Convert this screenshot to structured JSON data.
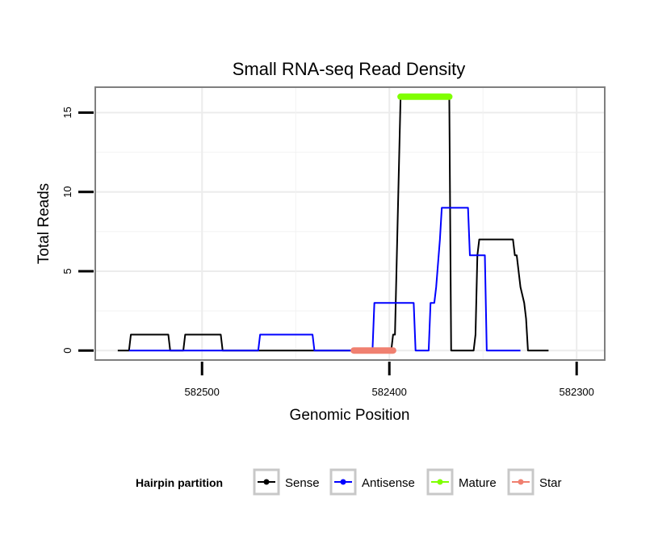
{
  "chart_data": {
    "type": "line",
    "title": "Small RNA-seq Read Density",
    "xlabel": "Genomic Position",
    "ylabel": "Total Reads",
    "xlim": [
      582557,
      582285
    ],
    "ylim": [
      -0.6,
      16.6
    ],
    "x_reversed": true,
    "x_ticks": [
      582500,
      582400,
      582300
    ],
    "x_tick_labels": [
      "582500",
      "582400",
      "582300"
    ],
    "y_ticks": [
      0,
      5,
      10,
      15
    ],
    "y_tick_labels": [
      "0",
      "5",
      "10",
      "15"
    ],
    "grid": true,
    "legend_position": "bottom",
    "legend_title": "Hairpin partition",
    "series": [
      {
        "name": "Sense",
        "color": "#000000",
        "kind": "line",
        "points": [
          [
            582545,
            0
          ],
          [
            582539,
            0
          ],
          [
            582538,
            1
          ],
          [
            582518,
            1
          ],
          [
            582517,
            0
          ],
          [
            582510,
            0
          ],
          [
            582509,
            1
          ],
          [
            582490,
            1
          ],
          [
            582489,
            0
          ],
          [
            582400,
            0
          ],
          [
            582399,
            0
          ],
          [
            582398,
            1
          ],
          [
            582397,
            1
          ],
          [
            582394,
            16
          ],
          [
            582368,
            16
          ],
          [
            582367,
            0
          ],
          [
            582355,
            0
          ],
          [
            582354,
            1
          ],
          [
            582353,
            6
          ],
          [
            582352,
            7
          ],
          [
            582334,
            7
          ],
          [
            582333,
            6
          ],
          [
            582332,
            6
          ],
          [
            582330,
            4
          ],
          [
            582328,
            3
          ],
          [
            582327,
            2
          ],
          [
            582326,
            0
          ],
          [
            582315,
            0
          ]
        ]
      },
      {
        "name": "Antisense",
        "color": "#0000ff",
        "kind": "line",
        "points": [
          [
            582539,
            0
          ],
          [
            582509,
            0
          ],
          [
            582490,
            0
          ],
          [
            582470,
            0
          ],
          [
            582469,
            1
          ],
          [
            582441,
            1
          ],
          [
            582440,
            0
          ],
          [
            582409,
            0
          ],
          [
            582408,
            3
          ],
          [
            582387,
            3
          ],
          [
            582386,
            0
          ],
          [
            582379,
            0
          ],
          [
            582378,
            3
          ],
          [
            582376,
            3
          ],
          [
            582375,
            4
          ],
          [
            582373,
            7
          ],
          [
            582372,
            9
          ],
          [
            582358,
            9
          ],
          [
            582357,
            6
          ],
          [
            582349,
            6
          ],
          [
            582348,
            0
          ],
          [
            582330,
            0
          ]
        ]
      },
      {
        "name": "Mature",
        "color": "#7fff00",
        "kind": "segment",
        "x_start": 582394,
        "x_end": 582368,
        "y": 16
      },
      {
        "name": "Star",
        "color": "#f08070",
        "kind": "segment",
        "x_start": 582419,
        "x_end": 582398,
        "y": 0
      }
    ]
  },
  "legend": {
    "title": "Hairpin partition",
    "items": [
      {
        "label": "Sense",
        "color": "#000000"
      },
      {
        "label": "Antisense",
        "color": "#0000ff"
      },
      {
        "label": "Mature",
        "color": "#7fff00"
      },
      {
        "label": "Star",
        "color": "#f08070"
      }
    ]
  }
}
